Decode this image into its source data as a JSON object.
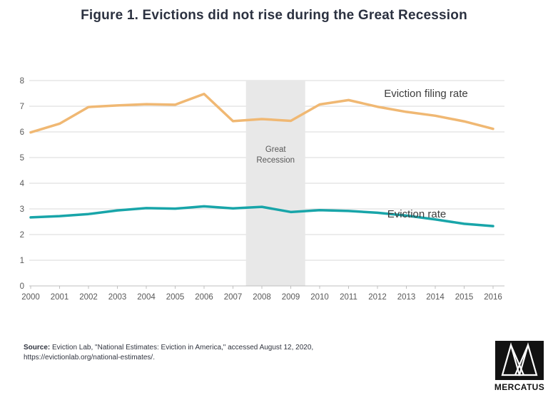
{
  "title": "Figure 1. Evictions did not rise during the Great Recession",
  "chart_data": {
    "type": "line",
    "x": [
      2000,
      2001,
      2002,
      2003,
      2004,
      2005,
      2006,
      2007,
      2008,
      2009,
      2010,
      2011,
      2012,
      2013,
      2014,
      2015,
      2016
    ],
    "series": [
      {
        "name": "Eviction filing rate",
        "color": "#f0b873",
        "values": [
          5.98,
          6.32,
          6.97,
          7.03,
          7.08,
          7.06,
          7.48,
          6.42,
          6.5,
          6.43,
          7.07,
          7.24,
          6.98,
          6.78,
          6.63,
          6.41,
          6.12
        ]
      },
      {
        "name": "Eviction rate",
        "color": "#18a5a9",
        "values": [
          2.67,
          2.72,
          2.8,
          2.94,
          3.03,
          3.01,
          3.1,
          3.02,
          3.08,
          2.88,
          2.95,
          2.92,
          2.85,
          2.74,
          2.59,
          2.42,
          2.33
        ]
      }
    ],
    "title": "Figure 1. Evictions did not rise during the Great Recession",
    "xlabel": "",
    "ylabel": "",
    "ylim": [
      0,
      8
    ],
    "yticks": [
      0,
      1,
      2,
      3,
      4,
      5,
      6,
      7,
      8
    ],
    "grid": "horizontal",
    "legend": "inline-labels",
    "annotations": {
      "band": {
        "x0": 2007.45,
        "x1": 2009.5,
        "label": "Great Recession",
        "color": "#e8e8e8"
      }
    }
  },
  "colors": {
    "gridline": "#d9d9d9",
    "axis": "#bfbfbf",
    "tick_label": "#595959",
    "band_label": "#595959",
    "series_label_text": "#3d3d3d",
    "title_text": "#2b3140"
  },
  "source": {
    "label": "Source:",
    "text": " Eviction Lab, \"National Estimates: Eviction in America,\" accessed August 12, 2020, https://evictionlab.org/national-estimates/."
  },
  "logo": {
    "text": "MERCATUS"
  }
}
